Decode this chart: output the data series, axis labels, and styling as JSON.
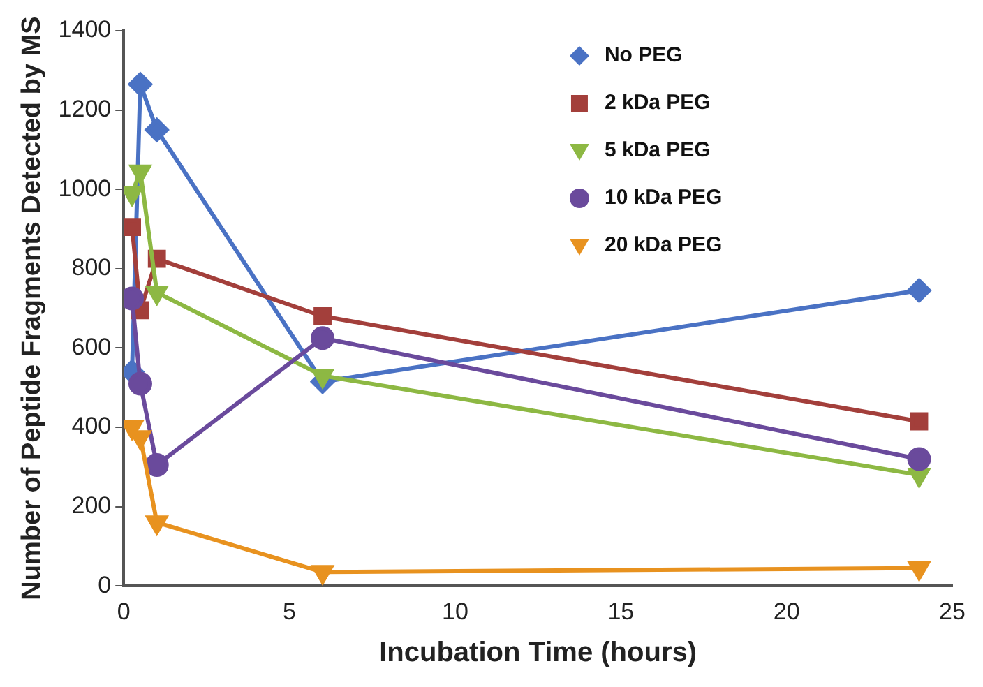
{
  "chart_data": {
    "type": "line",
    "xlabel": "Incubation Time (hours)",
    "ylabel": "Number of Peptide Fragments Detected by MS",
    "x": [
      0.25,
      0.5,
      1,
      6,
      24
    ],
    "xlim": [
      0,
      25
    ],
    "xticks": [
      0,
      5,
      10,
      15,
      20,
      25
    ],
    "ylim": [
      0,
      1400
    ],
    "yticks": [
      0,
      200,
      400,
      600,
      800,
      1000,
      1200,
      1400
    ],
    "grid": false,
    "legend": "top right",
    "series": [
      {
        "name": "No PEG",
        "color": "#4a72c4",
        "marker": "diamond",
        "values": [
          540,
          1265,
          1150,
          515,
          745
        ]
      },
      {
        "name": "2 kDa PEG",
        "color": "#a33f3b",
        "marker": "square",
        "values": [
          905,
          695,
          825,
          680,
          415
        ]
      },
      {
        "name": "5 kDa PEG",
        "color": "#8db843",
        "marker": "triangle",
        "values": [
          990,
          1045,
          740,
          530,
          280
        ]
      },
      {
        "name": "10 kDa PEG",
        "color": "#6a4a9c",
        "marker": "circle",
        "values": [
          725,
          510,
          305,
          625,
          320
        ]
      },
      {
        "name": "20 kDa PEG",
        "color": "#e8921f",
        "marker": "triangle",
        "values": [
          400,
          375,
          160,
          35,
          45
        ]
      }
    ]
  }
}
